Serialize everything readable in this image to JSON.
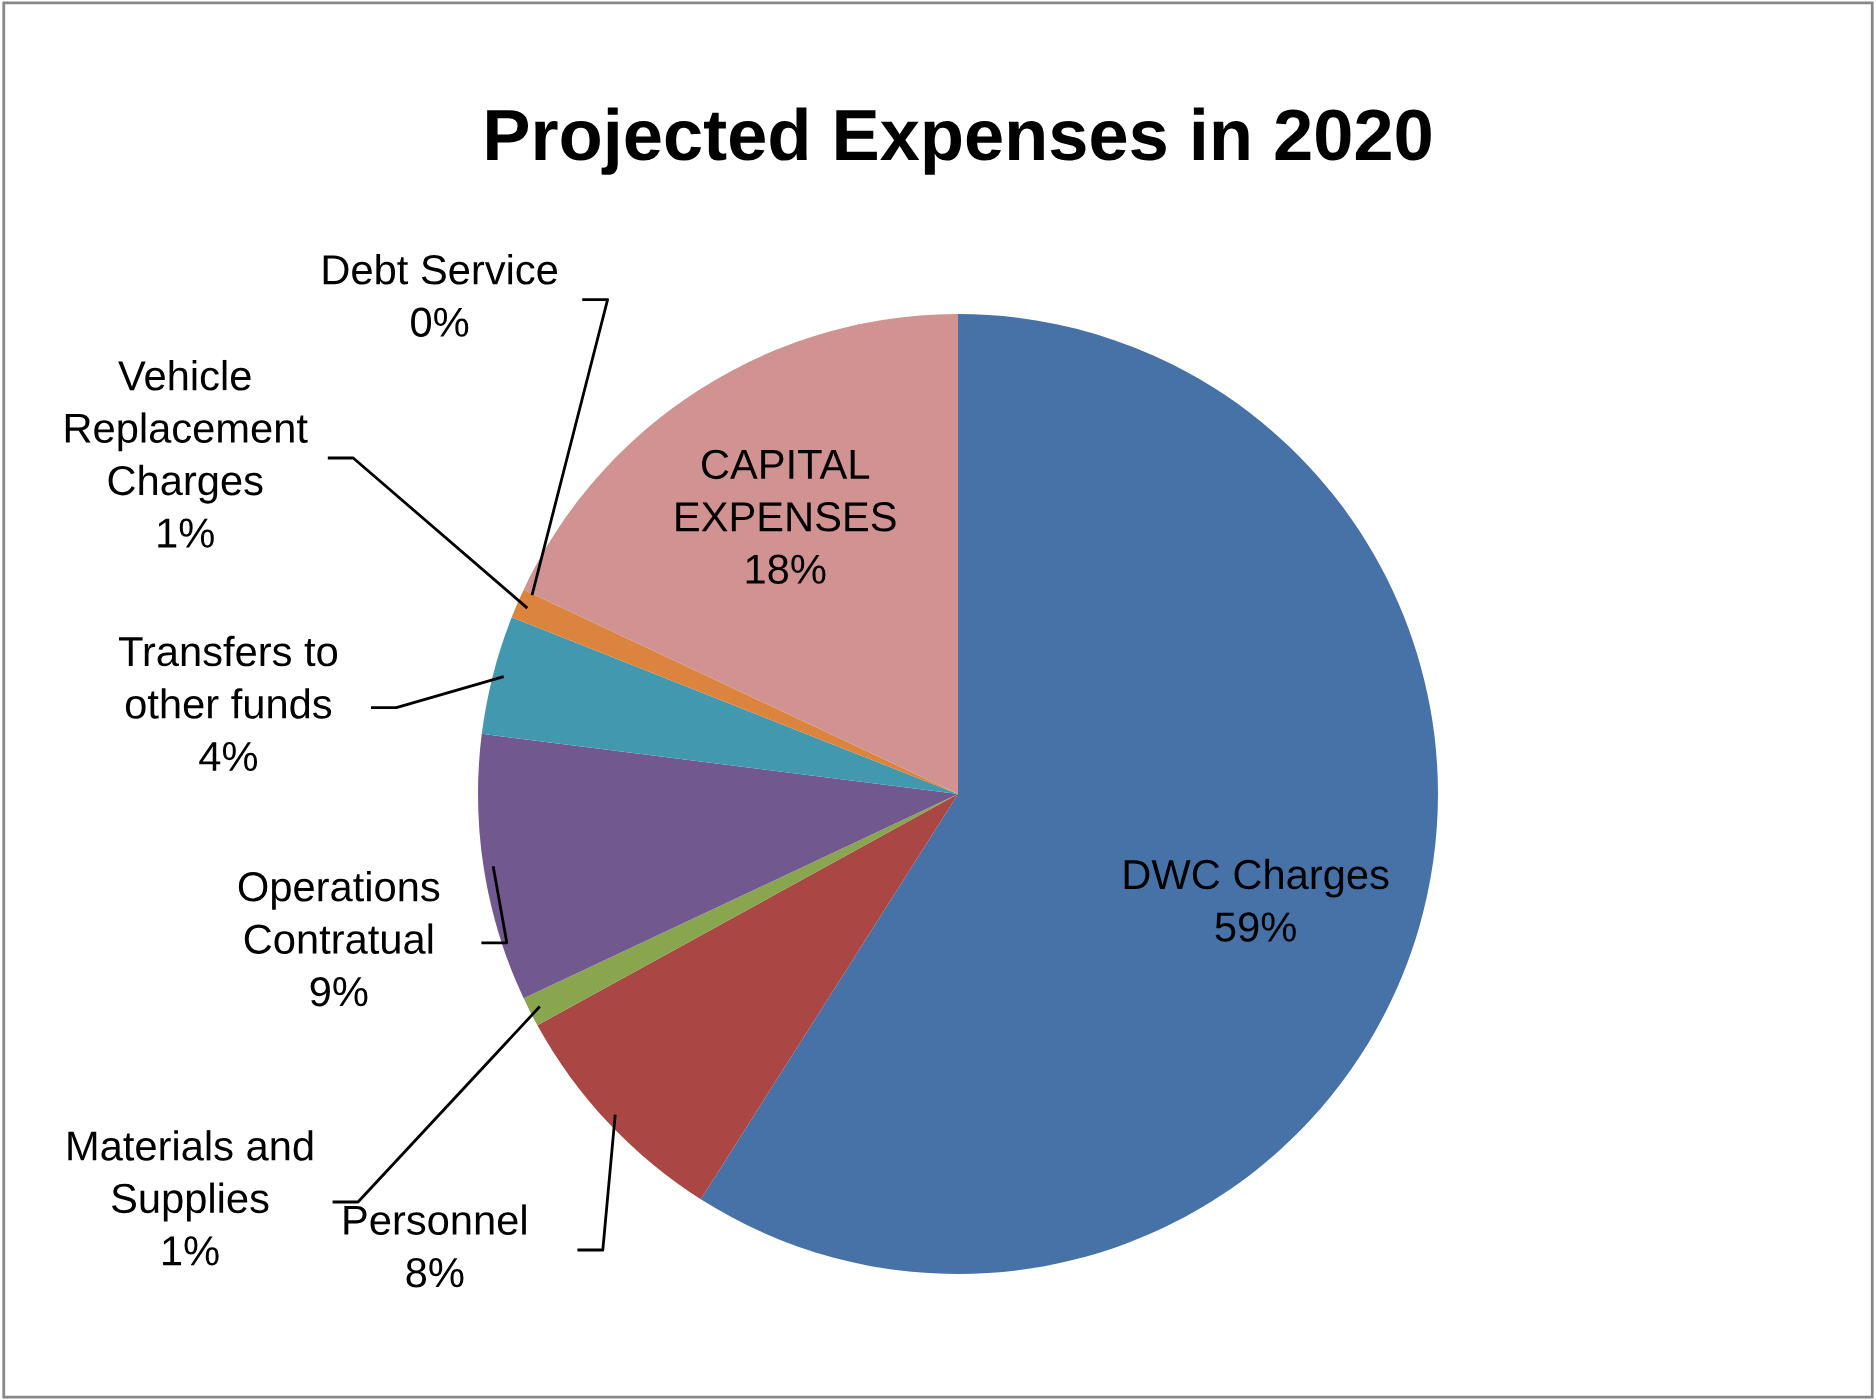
{
  "chart_data": {
    "type": "pie",
    "title": "Projected Expenses in 2020",
    "categories": [
      "DWC Charges",
      "Personnel",
      "Materials and\nSupplies",
      "Operations\nContratual",
      "Transfers to\nother funds",
      "Vehicle\nReplacement\nCharges",
      "Debt Service",
      "CAPITAL\nEXPENSES"
    ],
    "values": [
      59,
      8,
      1,
      9,
      4,
      1,
      0,
      18
    ],
    "colors": [
      "#4672a8",
      "#aa4643",
      "#89a54e",
      "#71588f",
      "#4198af",
      "#db843d",
      "#93a9cf",
      "#d09391"
    ],
    "value_labels": [
      "59%",
      "8%",
      "1%",
      "9%",
      "4%",
      "1%",
      "0%",
      "18%"
    ]
  }
}
